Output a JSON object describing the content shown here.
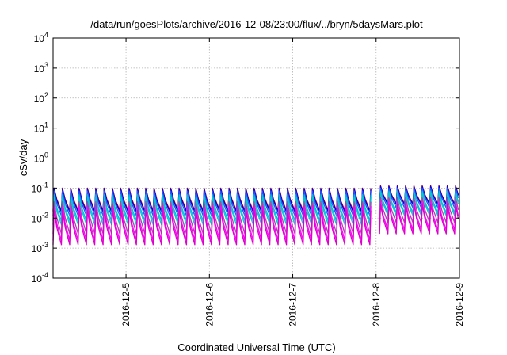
{
  "chart_data": {
    "type": "line",
    "title": "/data/run/goesPlots/archive/2016-12-08/23:00/flux/../bryn/5daysMars.plot",
    "xlabel": "Coordinated Universal Time (UTC)",
    "ylabel": "cSv/day",
    "xlim": [
      "2016-12-04T03:00",
      "2016-12-09T00:00"
    ],
    "x_ticks": [
      "2016-12-5",
      "2016-12-6",
      "2016-12-7",
      "2016-12-8",
      "2016-12-9"
    ],
    "x_tick_dates": [
      "2016-12-05T00:00",
      "2016-12-06T00:00",
      "2016-12-07T00:00",
      "2016-12-08T00:00",
      "2016-12-09T00:00"
    ],
    "y_scale": "log",
    "ylim": [
      0.0001,
      10000
    ],
    "y_ticks": [
      {
        "base": "10",
        "exp": "-4",
        "value": 0.0001
      },
      {
        "base": "10",
        "exp": "-3",
        "value": 0.001
      },
      {
        "base": "10",
        "exp": "-2",
        "value": 0.01
      },
      {
        "base": "10",
        "exp": "-1",
        "value": 0.1
      },
      {
        "base": "10",
        "exp": "0",
        "value": 1
      },
      {
        "base": "10",
        "exp": "1",
        "value": 10
      },
      {
        "base": "10",
        "exp": "2",
        "value": 100
      },
      {
        "base": "10",
        "exp": "3",
        "value": 1000
      },
      {
        "base": "10",
        "exp": "4",
        "value": 10000
      }
    ],
    "grid": true,
    "legend": "none",
    "sawtooth_period_hours": 2.4,
    "data_gap": [
      "2016-12-07T23:00",
      "2016-12-08T01:00"
    ],
    "series": [
      {
        "color": "#cc0000",
        "peak_before_gap": 0.1,
        "trough_before_gap": 0.018,
        "peak_after_gap": 0.12,
        "trough_after_gap": 0.03
      },
      {
        "color": "#0000dd",
        "peak_before_gap": 0.095,
        "trough_before_gap": 0.016,
        "peak_after_gap": 0.115,
        "trough_after_gap": 0.028
      },
      {
        "color": "#2255ff",
        "peak_before_gap": 0.08,
        "trough_before_gap": 0.012,
        "peak_after_gap": 0.1,
        "trough_after_gap": 0.022
      },
      {
        "color": "#00bbdd",
        "peak_before_gap": 0.06,
        "trough_before_gap": 0.008,
        "peak_after_gap": 0.08,
        "trough_after_gap": 0.015
      },
      {
        "color": "#00cccc",
        "peak_before_gap": 0.05,
        "trough_before_gap": 0.006,
        "peak_after_gap": 0.07,
        "trough_after_gap": 0.012
      },
      {
        "color": "#aa44aa",
        "peak_before_gap": 0.035,
        "trough_before_gap": 0.003,
        "peak_after_gap": 0.05,
        "trough_after_gap": 0.007
      },
      {
        "color": "#ff00ff",
        "peak_before_gap": 0.025,
        "trough_before_gap": 0.0018,
        "peak_after_gap": 0.035,
        "trough_after_gap": 0.004
      },
      {
        "color": "#dd00cc",
        "peak_before_gap": 0.018,
        "trough_before_gap": 0.0013,
        "peak_after_gap": 0.028,
        "trough_after_gap": 0.003
      }
    ]
  }
}
